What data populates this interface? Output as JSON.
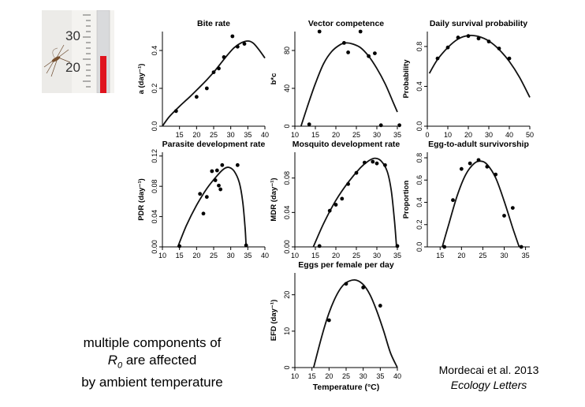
{
  "caption": {
    "line1": "multiple components of",
    "r_symbol": "R",
    "r_subscript": "0",
    "line2_rest": " are affected",
    "line3": "by ambient temperature"
  },
  "citation": {
    "authors": "Mordecai et al. 2013",
    "journal": "Ecology Letters"
  },
  "photo": {
    "ruler_labels": [
      "30",
      "20"
    ],
    "thermometer_color": "#e0141e"
  },
  "shared_xlabel": "Temperature (°C)",
  "chart_data": [
    {
      "id": "bite-rate",
      "type": "scatter",
      "title": "Bite rate",
      "ylabel": "a (day⁻¹)",
      "xlim": [
        10,
        40
      ],
      "ylim": [
        0,
        0.5
      ],
      "xticks": [
        15,
        20,
        25,
        30,
        35,
        40
      ],
      "yticks": [
        0.0,
        0.2,
        0.4
      ],
      "points": {
        "x": [
          14,
          20,
          23,
          25,
          26.5,
          28,
          30.5,
          32,
          34
        ],
        "y": [
          0.08,
          0.155,
          0.2,
          0.285,
          0.305,
          0.365,
          0.475,
          0.42,
          0.435
        ]
      },
      "curve": [
        [
          10,
          0.0
        ],
        [
          12,
          0.05
        ],
        [
          15,
          0.105
        ],
        [
          18,
          0.155
        ],
        [
          20,
          0.19
        ],
        [
          23,
          0.245
        ],
        [
          25,
          0.285
        ],
        [
          27,
          0.33
        ],
        [
          29,
          0.375
        ],
        [
          31,
          0.415
        ],
        [
          33,
          0.44
        ],
        [
          35,
          0.45
        ],
        [
          36.5,
          0.44
        ],
        [
          38,
          0.41
        ],
        [
          40,
          0.36
        ]
      ]
    },
    {
      "id": "vector-competence",
      "type": "scatter",
      "title": "Vector competence",
      "ylabel": "b*c",
      "xlim": [
        10,
        35
      ],
      "ylim": [
        0,
        100
      ],
      "xticks": [
        10,
        15,
        20,
        25,
        30,
        35
      ],
      "yticks": [
        0,
        40,
        80
      ],
      "points": {
        "x": [
          13.5,
          16,
          22,
          23,
          26,
          28,
          29.5,
          31,
          35.5
        ],
        "y": [
          2,
          100,
          88,
          78,
          100,
          74,
          77,
          1,
          1
        ]
      },
      "curve": [
        [
          11.5,
          0
        ],
        [
          13,
          20
        ],
        [
          15,
          45
        ],
        [
          17,
          66
        ],
        [
          19,
          79
        ],
        [
          21,
          86
        ],
        [
          22.5,
          88
        ],
        [
          24,
          87
        ],
        [
          26,
          83
        ],
        [
          28,
          74
        ],
        [
          30,
          61
        ],
        [
          32,
          45
        ],
        [
          34,
          25
        ],
        [
          35,
          15
        ]
      ]
    },
    {
      "id": "daily-survival",
      "type": "scatter",
      "title": "Daily survival probability",
      "ylabel": "Probability",
      "xlim": [
        0,
        50
      ],
      "ylim": [
        0,
        0.95
      ],
      "xticks": [
        0,
        10,
        20,
        30,
        40,
        50
      ],
      "yticks": [
        0.0,
        0.4,
        0.8
      ],
      "points": {
        "x": [
          5,
          10,
          15,
          20,
          25,
          30,
          35,
          40
        ],
        "y": [
          0.68,
          0.79,
          0.89,
          0.905,
          0.88,
          0.85,
          0.78,
          0.68
        ]
      },
      "curve": [
        [
          1,
          0.53
        ],
        [
          5,
          0.67
        ],
        [
          10,
          0.79
        ],
        [
          15,
          0.875
        ],
        [
          20,
          0.91
        ],
        [
          25,
          0.9
        ],
        [
          30,
          0.855
        ],
        [
          35,
          0.77
        ],
        [
          40,
          0.65
        ],
        [
          45,
          0.49
        ],
        [
          50,
          0.29
        ]
      ]
    },
    {
      "id": "parasite-development",
      "type": "scatter",
      "title": "Parasite development rate",
      "ylabel": "PDR (day⁻¹)",
      "xlim": [
        10,
        40
      ],
      "ylim": [
        0,
        0.125
      ],
      "xticks": [
        10,
        15,
        20,
        25,
        30,
        35,
        40
      ],
      "yticks": [
        0.0,
        0.04,
        0.08,
        0.12
      ],
      "points": {
        "x": [
          15,
          21,
          22,
          23,
          24.5,
          25.5,
          26,
          26.5,
          27,
          27.5,
          32,
          34.5
        ],
        "y": [
          0.001,
          0.07,
          0.044,
          0.066,
          0.1,
          0.088,
          0.101,
          0.081,
          0.076,
          0.108,
          0.108,
          0.002
        ]
      },
      "curve": [
        [
          14.5,
          0
        ],
        [
          17,
          0.028
        ],
        [
          20,
          0.055
        ],
        [
          23,
          0.077
        ],
        [
          26,
          0.094
        ],
        [
          28,
          0.103
        ],
        [
          29.5,
          0.105
        ],
        [
          31,
          0.1
        ],
        [
          32.5,
          0.085
        ],
        [
          33.5,
          0.06
        ],
        [
          34.2,
          0.025
        ],
        [
          34.5,
          0
        ]
      ]
    },
    {
      "id": "mosquito-development",
      "type": "scatter",
      "title": "Mosquito development rate",
      "ylabel": "MDR (day⁻¹)",
      "xlim": [
        10,
        35
      ],
      "ylim": [
        0,
        0.11
      ],
      "xticks": [
        10,
        15,
        20,
        25,
        30,
        35
      ],
      "yticks": [
        0.0,
        0.04,
        0.08
      ],
      "points": {
        "x": [
          16,
          18.5,
          20,
          21.5,
          23,
          25,
          27,
          29,
          30,
          32,
          35
        ],
        "y": [
          0.001,
          0.042,
          0.049,
          0.056,
          0.073,
          0.086,
          0.098,
          0.099,
          0.097,
          0.095,
          0.001
        ]
      },
      "curve": [
        [
          14.5,
          0
        ],
        [
          17,
          0.027
        ],
        [
          20,
          0.054
        ],
        [
          23,
          0.075
        ],
        [
          26,
          0.092
        ],
        [
          28,
          0.1
        ],
        [
          29.5,
          0.103
        ],
        [
          31,
          0.1
        ],
        [
          32.5,
          0.088
        ],
        [
          33.5,
          0.066
        ],
        [
          34.3,
          0.03
        ],
        [
          34.8,
          0
        ]
      ]
    },
    {
      "id": "egg-to-adult",
      "type": "scatter",
      "title": "Egg-to-adult survivorship",
      "ylabel": "Proportion",
      "xlim": [
        12,
        36
      ],
      "ylim": [
        0,
        0.85
      ],
      "xticks": [
        15,
        20,
        25,
        30,
        35
      ],
      "yticks": [
        0.0,
        0.2,
        0.4,
        0.6,
        0.8
      ],
      "points": {
        "x": [
          16,
          18,
          20,
          22,
          24,
          26,
          28,
          30,
          32,
          34
        ],
        "y": [
          0.0,
          0.42,
          0.7,
          0.75,
          0.78,
          0.72,
          0.65,
          0.28,
          0.35,
          0.0
        ]
      },
      "curve": [
        [
          15.5,
          0
        ],
        [
          17,
          0.2
        ],
        [
          19,
          0.46
        ],
        [
          21,
          0.65
        ],
        [
          23,
          0.75
        ],
        [
          24.5,
          0.77
        ],
        [
          26,
          0.74
        ],
        [
          28,
          0.62
        ],
        [
          30,
          0.41
        ],
        [
          32,
          0.17
        ],
        [
          33.5,
          0
        ]
      ]
    },
    {
      "id": "eggs-per-female",
      "type": "scatter",
      "title": "Eggs per female per day",
      "ylabel": "EFD (day⁻¹)",
      "xlabel": "Temperature (°C)",
      "xlim": [
        10,
        40
      ],
      "ylim": [
        0,
        26
      ],
      "xticks": [
        10,
        15,
        20,
        25,
        30,
        35,
        40
      ],
      "yticks": [
        0,
        10,
        20
      ],
      "points": {
        "x": [
          20,
          25,
          30,
          35
        ],
        "y": [
          13,
          23,
          22,
          17
        ]
      },
      "curve": [
        [
          15.5,
          0
        ],
        [
          18,
          9
        ],
        [
          20,
          15
        ],
        [
          22,
          19.5
        ],
        [
          24,
          22.5
        ],
        [
          26,
          23.8
        ],
        [
          28,
          24
        ],
        [
          30,
          22.8
        ],
        [
          32,
          20
        ],
        [
          34,
          15.5
        ],
        [
          36,
          10
        ],
        [
          38,
          4
        ],
        [
          40,
          0
        ]
      ]
    }
  ]
}
